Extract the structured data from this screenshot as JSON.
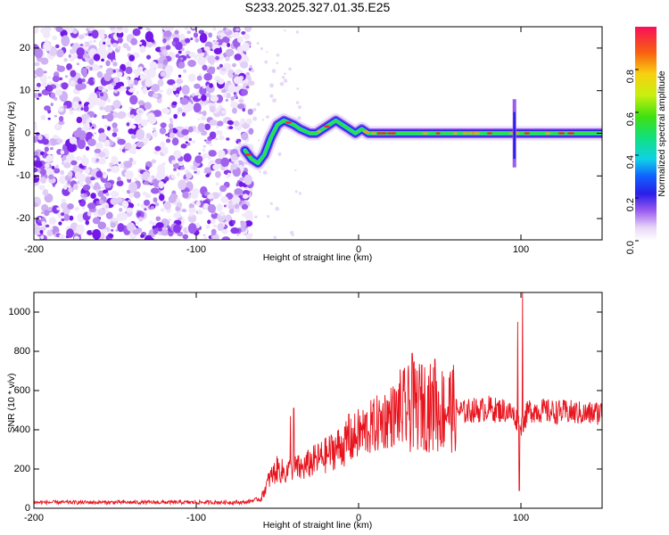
{
  "title": "S233.2025.327.01.35.E25",
  "chart_data": [
    {
      "type": "heatmap",
      "name": "spectrogram",
      "xlabel": "Height of straight line (km)",
      "ylabel": "Frequency (Hz)",
      "xlim": [
        -200,
        150
      ],
      "ylim": [
        -25,
        25
      ],
      "xticks": [
        -200,
        -100,
        0,
        100
      ],
      "yticks": [
        -20,
        -10,
        0,
        10,
        20
      ],
      "noise_region_x": [
        -200,
        -66
      ],
      "ridge_x": [
        -70,
        -66,
        -62,
        -58,
        -54,
        -50,
        -46,
        -40,
        -36,
        -30,
        -26,
        -22,
        -18,
        -14,
        -10,
        -6,
        -2,
        2,
        6,
        10,
        20,
        30,
        40,
        50,
        60,
        70,
        80,
        90,
        96,
        100,
        110,
        120,
        130,
        140,
        150
      ],
      "ridge_freq": [
        -4,
        -6,
        -7,
        -5,
        -1,
        2,
        3,
        2,
        1,
        0,
        0,
        1,
        2,
        3,
        2,
        1,
        0,
        1,
        0,
        0,
        0,
        0,
        0,
        0,
        0,
        0,
        0,
        0,
        0,
        0,
        0,
        0,
        0,
        0,
        0
      ],
      "colorbar": {
        "label": "Normalized spectral amplitude",
        "ticks": [
          0.0,
          0.2,
          0.4,
          0.6,
          0.8
        ],
        "range": [
          0,
          1
        ]
      }
    },
    {
      "type": "line",
      "name": "snr",
      "xlabel": "Height of straight line (km)",
      "ylabel": "SNR (10 * v/v)",
      "xlim": [
        -200,
        150
      ],
      "ylim": [
        0,
        1100
      ],
      "xticks": [
        -200,
        -100,
        0,
        100
      ],
      "yticks": [
        0,
        200,
        400,
        600,
        800,
        1000
      ],
      "color": "#e8141e",
      "trend_x": [
        -200,
        -70,
        -60,
        -55,
        -50,
        -45,
        -40,
        -35,
        -30,
        -25,
        -20,
        -15,
        -10,
        -5,
        0,
        5,
        10,
        15,
        20,
        25,
        30,
        35,
        40,
        45,
        50,
        55,
        60,
        65,
        70,
        75,
        80,
        85,
        90,
        95,
        100,
        105,
        110,
        120,
        130,
        140,
        150
      ],
      "trend_y": [
        30,
        30,
        50,
        150,
        200,
        180,
        210,
        200,
        230,
        250,
        270,
        300,
        320,
        340,
        380,
        400,
        420,
        450,
        470,
        490,
        500,
        520,
        530,
        510,
        500,
        520,
        500,
        490,
        500,
        500,
        510,
        500,
        500,
        480,
        420,
        500,
        500,
        490,
        490,
        480,
        490
      ],
      "spikes": [
        {
          "x": -40,
          "y": 510
        },
        {
          "x": -42,
          "y": 470
        },
        {
          "x": -6,
          "y": 480
        },
        {
          "x": 33,
          "y": 790
        },
        {
          "x": 39,
          "y": 730
        },
        {
          "x": 47,
          "y": 760
        },
        {
          "x": 98,
          "y": 950
        },
        {
          "x": 101,
          "y": 1110
        },
        {
          "x": 99,
          "y": 90
        }
      ]
    }
  ]
}
